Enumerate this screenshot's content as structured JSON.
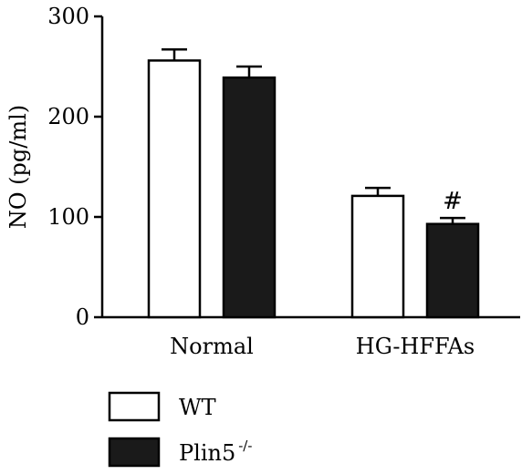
{
  "chart_data": {
    "type": "bar",
    "title": "",
    "xlabel": "",
    "ylabel": "NO (pg/ml)",
    "ylim": [
      0,
      300
    ],
    "yticks": [
      0,
      100,
      200,
      300
    ],
    "grid": false,
    "legend_position": "bottom-left",
    "categories": [
      "Normal",
      "HG-HFFAs"
    ],
    "series": [
      {
        "name": "WT",
        "color": "#ffffff",
        "values": [
          256,
          121
        ],
        "errors": [
          11,
          8
        ]
      },
      {
        "name": "Plin5",
        "name_superscript": "-/-",
        "color": "#1a1a1a",
        "values": [
          239,
          93
        ],
        "errors": [
          11,
          6
        ]
      }
    ],
    "annotations": [
      {
        "text": "#",
        "category": "HG-HFFAs",
        "series": "Plin5"
      }
    ]
  }
}
